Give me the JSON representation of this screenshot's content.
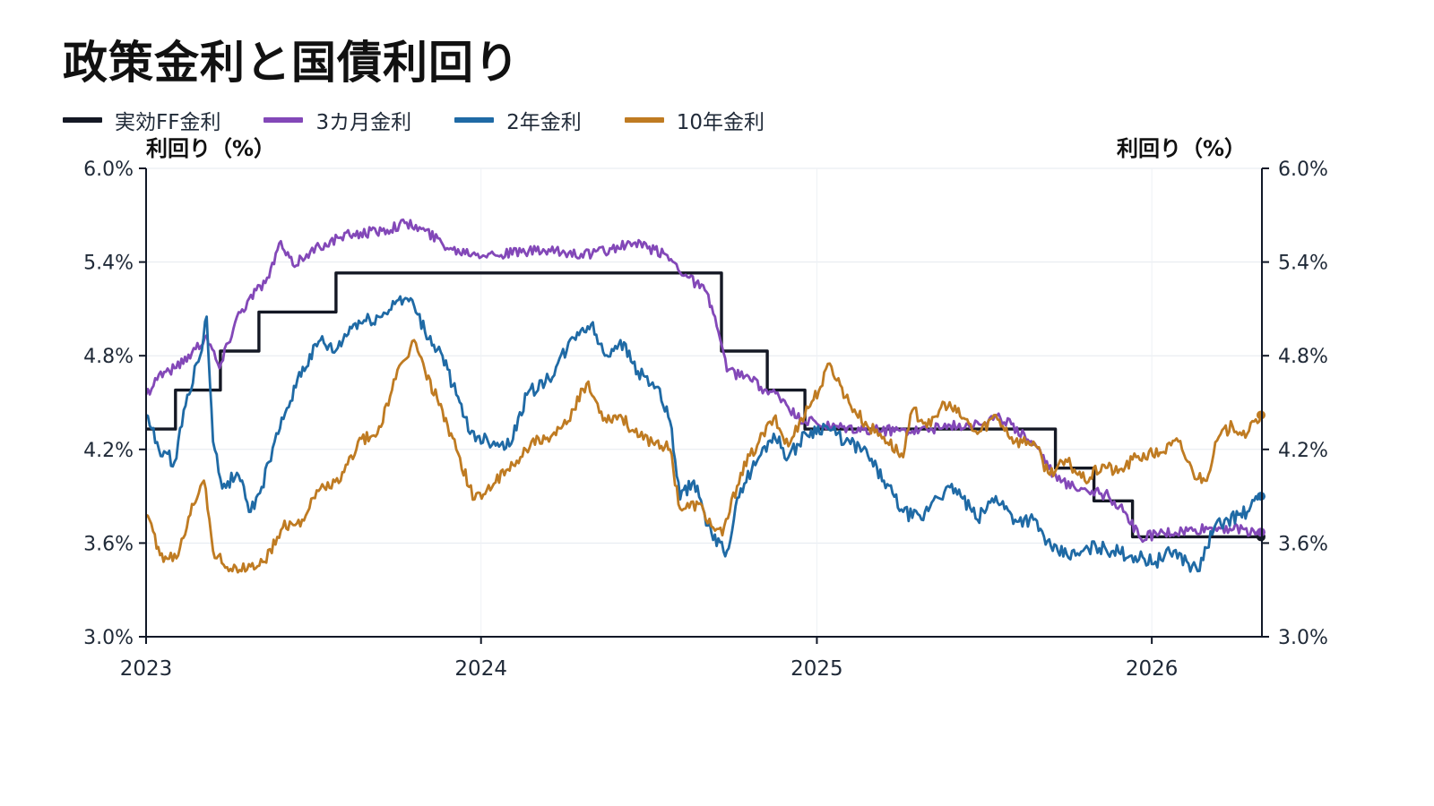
{
  "chart_data": {
    "type": "line",
    "title": "政策金利と国債利回り",
    "ylabel_left": "利回り（%）",
    "ylabel_right": "利回り（%）",
    "ylim": [
      3.0,
      6.0
    ],
    "yticks": [
      "6.0%",
      "5.4%",
      "4.8%",
      "4.2%",
      "3.6%",
      "3.0%"
    ],
    "ytick_values": [
      6.0,
      5.4,
      4.8,
      4.2,
      3.6,
      3.0
    ],
    "xlim": [
      "2023-01-01",
      "2026-05-01"
    ],
    "xticks": [
      {
        "label": "2023",
        "date": "2023-01-01"
      },
      {
        "label": "2024",
        "date": "2024-01-01"
      },
      {
        "label": "2025",
        "date": "2025-01-01"
      },
      {
        "label": "2026",
        "date": "2026-01-01"
      }
    ],
    "grid": true,
    "legend_position": "top-left",
    "series": [
      {
        "name": "実効FF金利",
        "color": "#141824",
        "step": true,
        "points": [
          [
            "2023-01-01",
            4.33
          ],
          [
            "2023-02-02",
            4.58
          ],
          [
            "2023-03-23",
            4.83
          ],
          [
            "2023-05-04",
            5.08
          ],
          [
            "2023-07-27",
            5.33
          ],
          [
            "2024-09-19",
            4.83
          ],
          [
            "2024-11-08",
            4.58
          ],
          [
            "2024-12-19",
            4.33
          ],
          [
            "2025-09-18",
            4.08
          ],
          [
            "2025-10-30",
            3.87
          ],
          [
            "2025-12-11",
            3.64
          ],
          [
            "2026-04-30",
            3.64
          ]
        ]
      },
      {
        "name": "3カ月金利",
        "color": "#8348b8",
        "points": [
          [
            "2023-01-01",
            4.55
          ],
          [
            "2023-01-15",
            4.68
          ],
          [
            "2023-02-01",
            4.72
          ],
          [
            "2023-02-20",
            4.82
          ],
          [
            "2023-03-08",
            4.93
          ],
          [
            "2023-03-22",
            4.72
          ],
          [
            "2023-04-10",
            5.05
          ],
          [
            "2023-05-01",
            5.22
          ],
          [
            "2023-05-15",
            5.3
          ],
          [
            "2023-05-26",
            5.52
          ],
          [
            "2023-06-10",
            5.38
          ],
          [
            "2023-06-25",
            5.45
          ],
          [
            "2023-07-15",
            5.52
          ],
          [
            "2023-08-15",
            5.58
          ],
          [
            "2023-09-15",
            5.6
          ],
          [
            "2023-10-10",
            5.65
          ],
          [
            "2023-11-01",
            5.6
          ],
          [
            "2023-12-01",
            5.48
          ],
          [
            "2024-01-15",
            5.45
          ],
          [
            "2024-03-01",
            5.47
          ],
          [
            "2024-05-01",
            5.45
          ],
          [
            "2024-06-15",
            5.52
          ],
          [
            "2024-07-20",
            5.45
          ],
          [
            "2024-08-15",
            5.3
          ],
          [
            "2024-09-01",
            5.22
          ],
          [
            "2024-09-12",
            5.05
          ],
          [
            "2024-09-25",
            4.7
          ],
          [
            "2024-10-15",
            4.67
          ],
          [
            "2024-11-01",
            4.6
          ],
          [
            "2024-11-25",
            4.52
          ],
          [
            "2024-12-10",
            4.4
          ],
          [
            "2025-01-15",
            4.34
          ],
          [
            "2025-03-01",
            4.32
          ],
          [
            "2025-05-01",
            4.33
          ],
          [
            "2025-06-15",
            4.36
          ],
          [
            "2025-07-20",
            4.4
          ],
          [
            "2025-08-15",
            4.3
          ],
          [
            "2025-09-01",
            4.2
          ],
          [
            "2025-09-20",
            4.0
          ],
          [
            "2025-10-20",
            3.95
          ],
          [
            "2025-11-15",
            3.9
          ],
          [
            "2025-12-05",
            3.78
          ],
          [
            "2025-12-18",
            3.64
          ],
          [
            "2026-01-15",
            3.66
          ],
          [
            "2026-02-15",
            3.68
          ],
          [
            "2026-03-15",
            3.7
          ],
          [
            "2026-04-30",
            3.67
          ]
        ]
      },
      {
        "name": "2年金利",
        "color": "#1f6aa5",
        "points": [
          [
            "2023-01-01",
            4.42
          ],
          [
            "2023-01-15",
            4.2
          ],
          [
            "2023-02-01",
            4.12
          ],
          [
            "2023-02-15",
            4.55
          ],
          [
            "2023-03-01",
            4.8
          ],
          [
            "2023-03-08",
            5.05
          ],
          [
            "2023-03-15",
            4.25
          ],
          [
            "2023-03-25",
            3.95
          ],
          [
            "2023-04-10",
            4.05
          ],
          [
            "2023-04-25",
            3.8
          ],
          [
            "2023-05-05",
            3.92
          ],
          [
            "2023-05-25",
            4.3
          ],
          [
            "2023-06-15",
            4.65
          ],
          [
            "2023-07-10",
            4.9
          ],
          [
            "2023-07-25",
            4.82
          ],
          [
            "2023-08-15",
            5.0
          ],
          [
            "2023-09-15",
            5.05
          ],
          [
            "2023-10-05",
            5.18
          ],
          [
            "2023-10-20",
            5.12
          ],
          [
            "2023-11-01",
            4.95
          ],
          [
            "2023-11-20",
            4.8
          ],
          [
            "2023-12-05",
            4.55
          ],
          [
            "2023-12-20",
            4.3
          ],
          [
            "2024-01-15",
            4.25
          ],
          [
            "2024-02-01",
            4.22
          ],
          [
            "2024-02-20",
            4.55
          ],
          [
            "2024-03-15",
            4.65
          ],
          [
            "2024-04-15",
            4.95
          ],
          [
            "2024-04-30",
            5.0
          ],
          [
            "2024-05-15",
            4.8
          ],
          [
            "2024-06-01",
            4.9
          ],
          [
            "2024-06-20",
            4.7
          ],
          [
            "2024-07-10",
            4.6
          ],
          [
            "2024-07-25",
            4.38
          ],
          [
            "2024-08-05",
            3.88
          ],
          [
            "2024-08-20",
            4.0
          ],
          [
            "2024-09-10",
            3.62
          ],
          [
            "2024-09-25",
            3.55
          ],
          [
            "2024-10-10",
            3.95
          ],
          [
            "2024-10-30",
            4.15
          ],
          [
            "2024-11-15",
            4.3
          ],
          [
            "2024-12-01",
            4.15
          ],
          [
            "2024-12-20",
            4.3
          ],
          [
            "2025-01-10",
            4.35
          ],
          [
            "2025-02-01",
            4.25
          ],
          [
            "2025-02-20",
            4.2
          ],
          [
            "2025-03-15",
            4.0
          ],
          [
            "2025-04-05",
            3.8
          ],
          [
            "2025-04-25",
            3.75
          ],
          [
            "2025-05-10",
            3.9
          ],
          [
            "2025-06-01",
            3.95
          ],
          [
            "2025-06-25",
            3.75
          ],
          [
            "2025-07-15",
            3.9
          ],
          [
            "2025-08-05",
            3.75
          ],
          [
            "2025-08-25",
            3.75
          ],
          [
            "2025-09-15",
            3.55
          ],
          [
            "2025-10-10",
            3.52
          ],
          [
            "2025-11-01",
            3.58
          ],
          [
            "2025-11-20",
            3.55
          ],
          [
            "2025-12-10",
            3.52
          ],
          [
            "2026-01-05",
            3.48
          ],
          [
            "2026-01-25",
            3.55
          ],
          [
            "2026-02-20",
            3.42
          ],
          [
            "2026-03-10",
            3.7
          ],
          [
            "2026-03-25",
            3.75
          ],
          [
            "2026-04-15",
            3.8
          ],
          [
            "2026-04-30",
            3.9
          ]
        ]
      },
      {
        "name": "10年金利",
        "color": "#bf7b22",
        "points": [
          [
            "2023-01-01",
            3.78
          ],
          [
            "2023-01-20",
            3.48
          ],
          [
            "2023-02-05",
            3.52
          ],
          [
            "2023-02-20",
            3.85
          ],
          [
            "2023-03-05",
            4.0
          ],
          [
            "2023-03-15",
            3.55
          ],
          [
            "2023-04-05",
            3.42
          ],
          [
            "2023-04-25",
            3.45
          ],
          [
            "2023-05-10",
            3.48
          ],
          [
            "2023-05-30",
            3.7
          ],
          [
            "2023-06-20",
            3.75
          ],
          [
            "2023-07-10",
            3.95
          ],
          [
            "2023-08-01",
            4.0
          ],
          [
            "2023-08-20",
            4.25
          ],
          [
            "2023-09-10",
            4.3
          ],
          [
            "2023-09-30",
            4.65
          ],
          [
            "2023-10-20",
            4.9
          ],
          [
            "2023-11-01",
            4.7
          ],
          [
            "2023-11-20",
            4.45
          ],
          [
            "2023-12-05",
            4.2
          ],
          [
            "2023-12-25",
            3.88
          ],
          [
            "2024-01-15",
            3.98
          ],
          [
            "2024-02-05",
            4.1
          ],
          [
            "2024-02-25",
            4.25
          ],
          [
            "2024-03-15",
            4.25
          ],
          [
            "2024-04-05",
            4.38
          ],
          [
            "2024-04-25",
            4.62
          ],
          [
            "2024-05-15",
            4.4
          ],
          [
            "2024-06-01",
            4.42
          ],
          [
            "2024-06-20",
            4.28
          ],
          [
            "2024-07-10",
            4.25
          ],
          [
            "2024-07-25",
            4.2
          ],
          [
            "2024-08-05",
            3.82
          ],
          [
            "2024-08-25",
            3.85
          ],
          [
            "2024-09-10",
            3.7
          ],
          [
            "2024-09-20",
            3.65
          ],
          [
            "2024-10-10",
            4.05
          ],
          [
            "2024-10-30",
            4.25
          ],
          [
            "2024-11-15",
            4.4
          ],
          [
            "2024-12-01",
            4.22
          ],
          [
            "2024-12-15",
            4.4
          ],
          [
            "2025-01-05",
            4.6
          ],
          [
            "2025-01-15",
            4.75
          ],
          [
            "2025-02-05",
            4.5
          ],
          [
            "2025-02-25",
            4.35
          ],
          [
            "2025-03-15",
            4.28
          ],
          [
            "2025-04-05",
            4.15
          ],
          [
            "2025-04-15",
            4.45
          ],
          [
            "2025-05-05",
            4.35
          ],
          [
            "2025-05-20",
            4.5
          ],
          [
            "2025-06-10",
            4.4
          ],
          [
            "2025-06-25",
            4.3
          ],
          [
            "2025-07-15",
            4.42
          ],
          [
            "2025-08-05",
            4.25
          ],
          [
            "2025-08-25",
            4.25
          ],
          [
            "2025-09-10",
            4.05
          ],
          [
            "2025-10-01",
            4.12
          ],
          [
            "2025-10-20",
            4.0
          ],
          [
            "2025-11-10",
            4.1
          ],
          [
            "2025-11-25",
            4.05
          ],
          [
            "2025-12-15",
            4.15
          ],
          [
            "2026-01-10",
            4.18
          ],
          [
            "2026-01-30",
            4.25
          ],
          [
            "2026-02-15",
            4.05
          ],
          [
            "2026-02-28",
            4.0
          ],
          [
            "2026-03-15",
            4.28
          ],
          [
            "2026-03-30",
            4.35
          ],
          [
            "2026-04-15",
            4.3
          ],
          [
            "2026-04-30",
            4.42
          ]
        ]
      }
    ]
  }
}
